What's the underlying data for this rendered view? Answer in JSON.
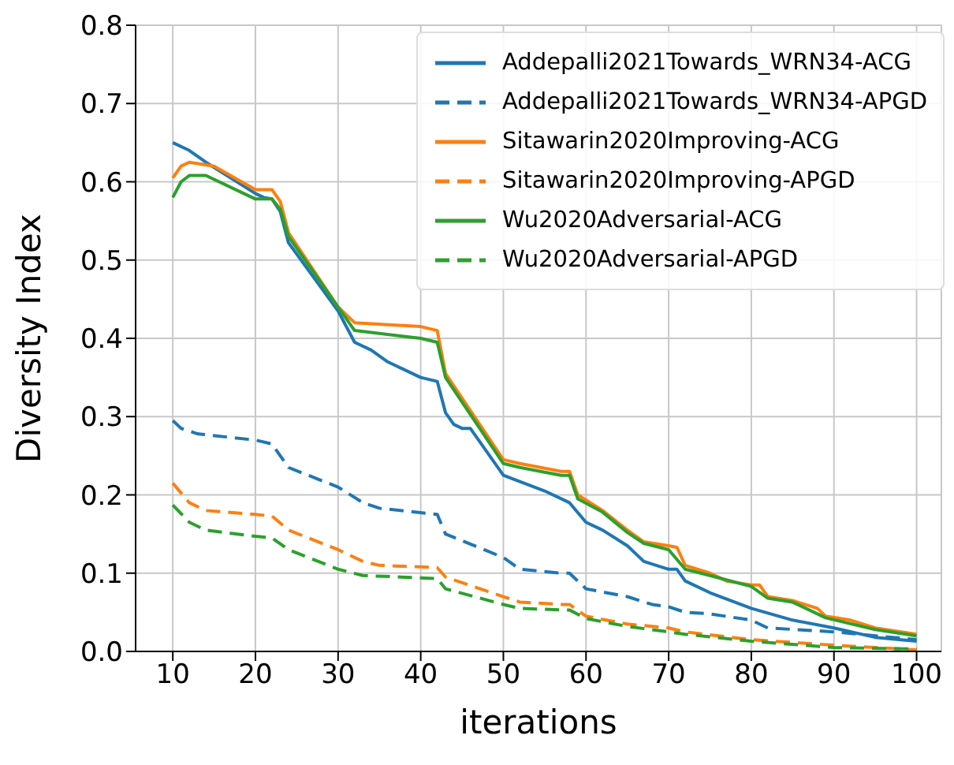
{
  "chart_data": {
    "type": "line",
    "xlabel": "iterations",
    "ylabel": "Diversity Index",
    "xlim": [
      5.5,
      103
    ],
    "ylim": [
      0,
      0.8
    ],
    "xticks": [
      10,
      20,
      30,
      40,
      50,
      60,
      70,
      80,
      90,
      100
    ],
    "yticks": [
      {
        "value": 0,
        "label": "0.0"
      },
      {
        "value": 0.1,
        "label": "0.1"
      },
      {
        "value": 0.2,
        "label": "0.2"
      },
      {
        "value": 0.3,
        "label": "0.3"
      },
      {
        "value": 0.4,
        "label": "0.4"
      },
      {
        "value": 0.5,
        "label": "0.5"
      },
      {
        "value": 0.6,
        "label": "0.6"
      },
      {
        "value": 0.7,
        "label": "0.7"
      },
      {
        "value": 0.8,
        "label": "0.8"
      }
    ],
    "grid": true,
    "legend": "top right",
    "marker": "none",
    "series": [
      {
        "name": "Addepalli2021Towards_WRN34-ACG",
        "color": "#1f77b4",
        "line_style": "solid",
        "x": [
          10,
          12,
          14,
          20,
          21,
          22,
          23,
          24,
          30,
          32,
          34,
          36,
          40,
          42,
          43,
          44,
          45,
          46,
          50,
          55,
          58,
          60,
          62,
          65,
          67,
          70,
          71,
          72,
          75,
          80,
          85,
          90,
          95,
          100
        ],
        "values": [
          0.65,
          0.64,
          0.625,
          0.585,
          0.58,
          0.578,
          0.562,
          0.522,
          0.435,
          0.395,
          0.385,
          0.37,
          0.35,
          0.345,
          0.305,
          0.29,
          0.285,
          0.285,
          0.225,
          0.205,
          0.19,
          0.165,
          0.155,
          0.135,
          0.115,
          0.105,
          0.105,
          0.09,
          0.075,
          0.055,
          0.04,
          0.03,
          0.018,
          0.013
        ]
      },
      {
        "name": "Addepalli2021Towards_WRN34-APGD",
        "color": "#1f77b4",
        "line_style": "dashed",
        "x": [
          10,
          11,
          13,
          20,
          22,
          24,
          30,
          33,
          35,
          42,
          43,
          50,
          52,
          57,
          58,
          60,
          65,
          68,
          70,
          72,
          75,
          80,
          82,
          90,
          100
        ],
        "values": [
          0.295,
          0.285,
          0.278,
          0.27,
          0.265,
          0.235,
          0.21,
          0.19,
          0.183,
          0.175,
          0.15,
          0.12,
          0.105,
          0.1,
          0.1,
          0.08,
          0.07,
          0.06,
          0.057,
          0.05,
          0.048,
          0.04,
          0.03,
          0.025,
          0.015
        ]
      },
      {
        "name": "Sitawarin2020Improving-ACG",
        "color": "#ff7f0e",
        "line_style": "solid",
        "x": [
          10,
          11,
          12,
          15,
          20,
          22,
          23,
          24,
          30,
          32,
          40,
          42,
          43,
          50,
          52,
          57,
          58,
          59,
          62,
          65,
          67,
          70,
          71,
          72,
          75,
          77,
          80,
          81,
          82,
          85,
          88,
          89,
          92,
          95,
          100
        ],
        "values": [
          0.605,
          0.62,
          0.625,
          0.62,
          0.59,
          0.59,
          0.575,
          0.535,
          0.44,
          0.42,
          0.415,
          0.41,
          0.355,
          0.245,
          0.24,
          0.23,
          0.23,
          0.2,
          0.18,
          0.155,
          0.14,
          0.135,
          0.133,
          0.11,
          0.1,
          0.09,
          0.085,
          0.085,
          0.07,
          0.065,
          0.055,
          0.045,
          0.04,
          0.03,
          0.022
        ]
      },
      {
        "name": "Sitawarin2020Improving-APGD",
        "color": "#ff7f0e",
        "line_style": "dashed",
        "x": [
          10,
          12,
          14,
          20,
          22,
          24,
          30,
          33,
          35,
          40,
          42,
          43,
          50,
          52,
          57,
          58,
          60,
          65,
          70,
          72,
          80,
          90,
          100
        ],
        "values": [
          0.215,
          0.19,
          0.18,
          0.175,
          0.173,
          0.155,
          0.13,
          0.115,
          0.11,
          0.108,
          0.107,
          0.095,
          0.07,
          0.063,
          0.06,
          0.06,
          0.045,
          0.035,
          0.03,
          0.025,
          0.015,
          0.008,
          0.002
        ]
      },
      {
        "name": "Wu2020Adversarial-ACG",
        "color": "#2ca02c",
        "line_style": "solid",
        "x": [
          10,
          11,
          12,
          14,
          20,
          22,
          23,
          24,
          30,
          32,
          40,
          42,
          43,
          50,
          52,
          57,
          58,
          59,
          62,
          65,
          67,
          70,
          72,
          75,
          80,
          82,
          85,
          89,
          95,
          100
        ],
        "values": [
          0.58,
          0.6,
          0.608,
          0.608,
          0.578,
          0.578,
          0.565,
          0.53,
          0.44,
          0.41,
          0.4,
          0.395,
          0.35,
          0.24,
          0.235,
          0.225,
          0.225,
          0.195,
          0.178,
          0.152,
          0.138,
          0.13,
          0.105,
          0.097,
          0.083,
          0.068,
          0.063,
          0.043,
          0.028,
          0.02
        ]
      },
      {
        "name": "Wu2020Adversarial-APGD",
        "color": "#2ca02c",
        "line_style": "dashed",
        "x": [
          10,
          12,
          14,
          20,
          22,
          24,
          30,
          33,
          40,
          42,
          43,
          50,
          52,
          57,
          58,
          60,
          65,
          70,
          72,
          80,
          90,
          100
        ],
        "values": [
          0.187,
          0.165,
          0.155,
          0.147,
          0.145,
          0.13,
          0.105,
          0.097,
          0.094,
          0.093,
          0.08,
          0.06,
          0.055,
          0.053,
          0.053,
          0.042,
          0.032,
          0.025,
          0.022,
          0.013,
          0.005,
          0.003
        ]
      }
    ]
  }
}
